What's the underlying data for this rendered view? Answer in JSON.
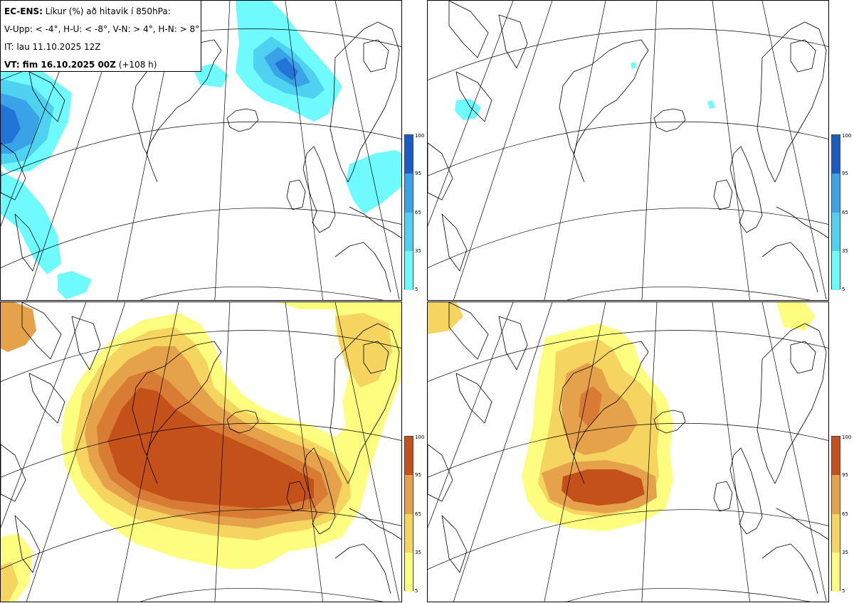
{
  "header": {
    "title_bold": "EC-ENS:",
    "title_rest": " Líkur (%) að hitavik í 850hPa:",
    "line2": "V-Upp: < -4°, H-U: < -8°, V-N: > 4°, H-N: > 8°",
    "line3": "IT: lau 11.10.2025 12Z",
    "line4_bold": "VT: fim 16.10.2025 00Z",
    "line4_rest": " (+108 h)"
  },
  "colorbar": {
    "ticks": [
      "100",
      "95",
      "65",
      "35",
      "5"
    ],
    "cold_colors": [
      "#6ffafd",
      "#4fd2f1",
      "#3aa3e8",
      "#2274d6",
      "#1b5bc4"
    ],
    "warm_colors": [
      "#fdfd80",
      "#f5d560",
      "#e5a24b",
      "#d77b35",
      "#c45119"
    ]
  },
  "panels": [
    {
      "id": "top-left",
      "variable": "below -4",
      "palette": "cold"
    },
    {
      "id": "top-right",
      "variable": "below -8",
      "palette": "cold"
    },
    {
      "id": "bottom-left",
      "variable": "above 4",
      "palette": "warm"
    },
    {
      "id": "bottom-right",
      "variable": "above 8",
      "palette": "warm"
    }
  ]
}
